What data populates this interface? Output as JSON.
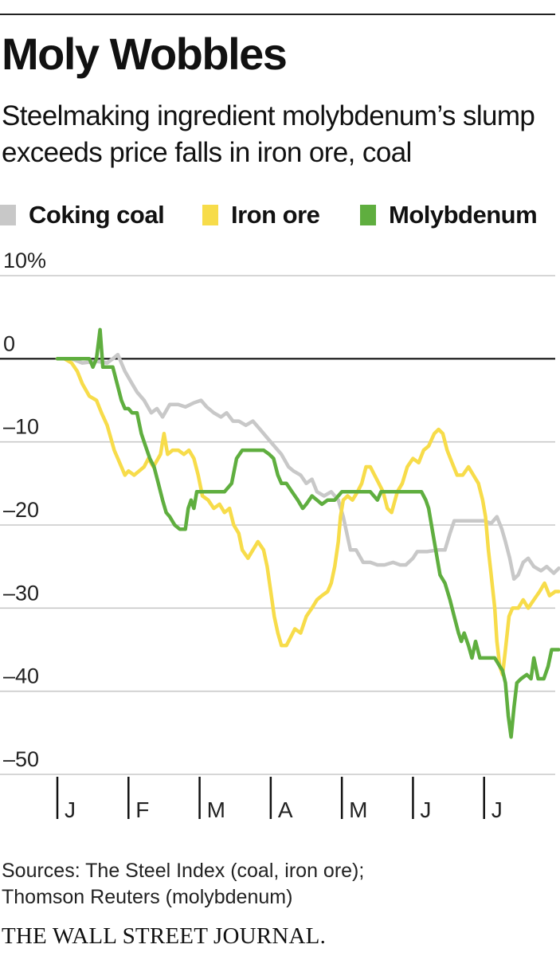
{
  "header": {
    "title": "Moly Wobbles",
    "subtitle": "Steelmaking ingredient molybdenum’s slump exceeds price falls in iron ore, coal"
  },
  "footer": {
    "source_lines": [
      "Sources: The Steel Index (coal, iron ore);",
      "Thomson Reuters (molybdenum)"
    ],
    "publisher": "THE WALL STREET JOURNAL."
  },
  "colors": {
    "coking_coal": "#c8c8c8",
    "iron_ore": "#f7dc4a",
    "molybdenum": "#5fae3f",
    "zero_line": "#111111",
    "grid": "#c8c8c8"
  },
  "chart_data": {
    "type": "line",
    "title": "Moly Wobbles",
    "subtitle": "Steelmaking ingredient molybdenum’s slump exceeds price falls in iron ore, coal",
    "xlabel": "",
    "ylabel": "",
    "y_tick_labels": [
      "10%",
      "0",
      "–10",
      "–20",
      "–30",
      "–40",
      "–50"
    ],
    "y_ticks": [
      10,
      0,
      -10,
      -20,
      -30,
      -40,
      -50
    ],
    "ylim": [
      -50,
      10
    ],
    "xlim": [
      0,
      7
    ],
    "x_tick_labels": [
      "J",
      "F",
      "M",
      "A",
      "M",
      "J",
      "J"
    ],
    "x_ticks": [
      0,
      1,
      2,
      3,
      4,
      5,
      6
    ],
    "legend_position": "top",
    "grid": true,
    "series": [
      {
        "name": "Coking coal",
        "color": "#c8c8c8",
        "points": [
          [
            0.0,
            0
          ],
          [
            0.2,
            0
          ],
          [
            0.35,
            -0.5
          ],
          [
            0.55,
            -0.3
          ],
          [
            0.7,
            -0.5
          ],
          [
            0.78,
            0
          ],
          [
            0.85,
            0.5
          ],
          [
            0.95,
            -1.5
          ],
          [
            1.05,
            -3
          ],
          [
            1.12,
            -4
          ],
          [
            1.22,
            -5
          ],
          [
            1.32,
            -6.5
          ],
          [
            1.4,
            -6
          ],
          [
            1.48,
            -7
          ],
          [
            1.58,
            -5.5
          ],
          [
            1.7,
            -5.5
          ],
          [
            1.8,
            -5.8
          ],
          [
            1.92,
            -5.3
          ],
          [
            2.02,
            -5
          ],
          [
            2.1,
            -5.8
          ],
          [
            2.2,
            -6.5
          ],
          [
            2.3,
            -7
          ],
          [
            2.38,
            -6.5
          ],
          [
            2.47,
            -7.5
          ],
          [
            2.55,
            -7.5
          ],
          [
            2.65,
            -8
          ],
          [
            2.75,
            -7.5
          ],
          [
            2.85,
            -8.5
          ],
          [
            2.95,
            -9.5
          ],
          [
            3.05,
            -10.5
          ],
          [
            3.15,
            -11.5
          ],
          [
            3.25,
            -13
          ],
          [
            3.32,
            -13.5
          ],
          [
            3.42,
            -14
          ],
          [
            3.5,
            -15
          ],
          [
            3.58,
            -14.5
          ],
          [
            3.65,
            -16
          ],
          [
            3.75,
            -16.5
          ],
          [
            3.85,
            -16
          ],
          [
            3.95,
            -17
          ],
          [
            4.02,
            -19
          ],
          [
            4.07,
            -21
          ],
          [
            4.12,
            -23
          ],
          [
            4.2,
            -23
          ],
          [
            4.3,
            -24.5
          ],
          [
            4.4,
            -24.5
          ],
          [
            4.5,
            -24.8
          ],
          [
            4.6,
            -24.8
          ],
          [
            4.72,
            -24.5
          ],
          [
            4.82,
            -24.8
          ],
          [
            4.9,
            -24.8
          ],
          [
            5.0,
            -24
          ],
          [
            5.06,
            -23.2
          ],
          [
            5.2,
            -23.2
          ],
          [
            5.35,
            -23
          ],
          [
            5.45,
            -23
          ],
          [
            5.52,
            -21
          ],
          [
            5.58,
            -19.5
          ],
          [
            5.7,
            -19.5
          ],
          [
            5.8,
            -19.5
          ],
          [
            5.9,
            -19.5
          ],
          [
            6.0,
            -19.5
          ],
          [
            6.1,
            -19.8
          ],
          [
            6.18,
            -19
          ],
          [
            6.25,
            -20.5
          ],
          [
            6.3,
            -22
          ],
          [
            6.36,
            -24
          ],
          [
            6.42,
            -26.5
          ],
          [
            6.48,
            -26
          ],
          [
            6.55,
            -24.5
          ],
          [
            6.62,
            -24
          ],
          [
            6.7,
            -25
          ],
          [
            6.8,
            -25.5
          ],
          [
            6.88,
            -25
          ],
          [
            6.98,
            -25.8
          ],
          [
            7.05,
            -25.2
          ]
        ]
      },
      {
        "name": "Iron ore",
        "color": "#f7dc4a",
        "points": [
          [
            0.0,
            0
          ],
          [
            0.1,
            0
          ],
          [
            0.2,
            -0.5
          ],
          [
            0.28,
            -1.5
          ],
          [
            0.35,
            -3
          ],
          [
            0.45,
            -4.5
          ],
          [
            0.55,
            -5
          ],
          [
            0.62,
            -6.5
          ],
          [
            0.7,
            -8
          ],
          [
            0.75,
            -9.5
          ],
          [
            0.8,
            -11
          ],
          [
            0.85,
            -12
          ],
          [
            0.9,
            -13
          ],
          [
            0.95,
            -14
          ],
          [
            1.0,
            -13.5
          ],
          [
            1.08,
            -14
          ],
          [
            1.15,
            -13.5
          ],
          [
            1.22,
            -13
          ],
          [
            1.28,
            -12
          ],
          [
            1.35,
            -13
          ],
          [
            1.45,
            -11.5
          ],
          [
            1.5,
            -9
          ],
          [
            1.55,
            -11.5
          ],
          [
            1.62,
            -11
          ],
          [
            1.7,
            -11
          ],
          [
            1.78,
            -11.5
          ],
          [
            1.85,
            -11
          ],
          [
            1.92,
            -12
          ],
          [
            1.98,
            -14
          ],
          [
            2.04,
            -16.5
          ],
          [
            2.12,
            -17
          ],
          [
            2.2,
            -18
          ],
          [
            2.28,
            -17.5
          ],
          [
            2.35,
            -18.5
          ],
          [
            2.42,
            -18
          ],
          [
            2.48,
            -20
          ],
          [
            2.55,
            -21
          ],
          [
            2.6,
            -23
          ],
          [
            2.68,
            -24
          ],
          [
            2.75,
            -23
          ],
          [
            2.82,
            -22
          ],
          [
            2.9,
            -23
          ],
          [
            2.95,
            -25
          ],
          [
            3.0,
            -28
          ],
          [
            3.05,
            -31
          ],
          [
            3.1,
            -33
          ],
          [
            3.15,
            -34.5
          ],
          [
            3.22,
            -34.5
          ],
          [
            3.28,
            -33.5
          ],
          [
            3.34,
            -32.5
          ],
          [
            3.42,
            -33
          ],
          [
            3.5,
            -31
          ],
          [
            3.58,
            -30
          ],
          [
            3.65,
            -29
          ],
          [
            3.72,
            -28.5
          ],
          [
            3.8,
            -28
          ],
          [
            3.85,
            -27
          ],
          [
            3.9,
            -25
          ],
          [
            3.95,
            -22
          ],
          [
            3.98,
            -19
          ],
          [
            4.02,
            -17
          ],
          [
            4.08,
            -16.5
          ],
          [
            4.15,
            -17
          ],
          [
            4.22,
            -16
          ],
          [
            4.28,
            -15
          ],
          [
            4.34,
            -13
          ],
          [
            4.4,
            -13
          ],
          [
            4.46,
            -14
          ],
          [
            4.52,
            -15
          ],
          [
            4.58,
            -16
          ],
          [
            4.64,
            -18
          ],
          [
            4.7,
            -18.5
          ],
          [
            4.78,
            -16
          ],
          [
            4.85,
            -15
          ],
          [
            4.92,
            -13
          ],
          [
            5.0,
            -12
          ],
          [
            5.08,
            -12.5
          ],
          [
            5.15,
            -11
          ],
          [
            5.22,
            -10.5
          ],
          [
            5.3,
            -9
          ],
          [
            5.36,
            -8.5
          ],
          [
            5.42,
            -9
          ],
          [
            5.48,
            -11
          ],
          [
            5.55,
            -12.5
          ],
          [
            5.62,
            -14
          ],
          [
            5.7,
            -14
          ],
          [
            5.78,
            -13
          ],
          [
            5.85,
            -14
          ],
          [
            5.92,
            -15
          ],
          [
            5.98,
            -17
          ],
          [
            6.02,
            -19
          ],
          [
            6.06,
            -23
          ],
          [
            6.1,
            -26
          ],
          [
            6.15,
            -30
          ],
          [
            6.18,
            -34
          ],
          [
            6.22,
            -37
          ],
          [
            6.26,
            -38
          ],
          [
            6.3,
            -35
          ],
          [
            6.35,
            -31
          ],
          [
            6.4,
            -30
          ],
          [
            6.48,
            -30
          ],
          [
            6.55,
            -29
          ],
          [
            6.62,
            -30
          ],
          [
            6.7,
            -29
          ],
          [
            6.78,
            -28
          ],
          [
            6.85,
            -27
          ],
          [
            6.92,
            -28.5
          ],
          [
            7.0,
            -28
          ],
          [
            7.05,
            -28
          ]
        ]
      },
      {
        "name": "Molybdenum",
        "color": "#5fae3f",
        "points": [
          [
            0.0,
            0
          ],
          [
            0.45,
            0
          ],
          [
            0.5,
            -1
          ],
          [
            0.55,
            0
          ],
          [
            0.6,
            3.5
          ],
          [
            0.64,
            -1
          ],
          [
            0.7,
            -1
          ],
          [
            0.78,
            -1
          ],
          [
            0.84,
            -3
          ],
          [
            0.9,
            -5
          ],
          [
            0.95,
            -6
          ],
          [
            1.0,
            -6
          ],
          [
            1.05,
            -6.5
          ],
          [
            1.12,
            -6.5
          ],
          [
            1.18,
            -9
          ],
          [
            1.22,
            -10
          ],
          [
            1.3,
            -12
          ],
          [
            1.36,
            -13
          ],
          [
            1.42,
            -15
          ],
          [
            1.48,
            -17
          ],
          [
            1.53,
            -18.5
          ],
          [
            1.58,
            -19
          ],
          [
            1.65,
            -20
          ],
          [
            1.72,
            -20.5
          ],
          [
            1.8,
            -20.5
          ],
          [
            1.84,
            -18
          ],
          [
            1.88,
            -17
          ],
          [
            1.92,
            -18
          ],
          [
            1.96,
            -16
          ],
          [
            2.05,
            -16
          ],
          [
            2.2,
            -16
          ],
          [
            2.35,
            -16
          ],
          [
            2.45,
            -15
          ],
          [
            2.52,
            -12
          ],
          [
            2.6,
            -11
          ],
          [
            2.7,
            -11
          ],
          [
            2.82,
            -11
          ],
          [
            2.9,
            -11
          ],
          [
            2.98,
            -11.5
          ],
          [
            3.04,
            -12
          ],
          [
            3.1,
            -14
          ],
          [
            3.15,
            -15
          ],
          [
            3.22,
            -15
          ],
          [
            3.3,
            -16
          ],
          [
            3.38,
            -17
          ],
          [
            3.45,
            -18
          ],
          [
            3.5,
            -17.5
          ],
          [
            3.58,
            -16.5
          ],
          [
            3.65,
            -17
          ],
          [
            3.72,
            -17.5
          ],
          [
            3.8,
            -17
          ],
          [
            3.9,
            -17
          ],
          [
            4.0,
            -16
          ],
          [
            4.2,
            -16
          ],
          [
            4.4,
            -16
          ],
          [
            4.5,
            -17
          ],
          [
            4.55,
            -16
          ],
          [
            4.7,
            -16
          ],
          [
            4.85,
            -16
          ],
          [
            5.0,
            -16
          ],
          [
            5.12,
            -16
          ],
          [
            5.18,
            -17
          ],
          [
            5.22,
            -18
          ],
          [
            5.28,
            -21
          ],
          [
            5.32,
            -23
          ],
          [
            5.38,
            -26
          ],
          [
            5.45,
            -27
          ],
          [
            5.52,
            -29
          ],
          [
            5.58,
            -31
          ],
          [
            5.64,
            -33
          ],
          [
            5.68,
            -34
          ],
          [
            5.72,
            -33
          ],
          [
            5.78,
            -34.5
          ],
          [
            5.83,
            -36
          ],
          [
            5.88,
            -34
          ],
          [
            5.94,
            -36
          ],
          [
            6.05,
            -36
          ],
          [
            6.15,
            -36
          ],
          [
            6.22,
            -37
          ],
          [
            6.26,
            -37.5
          ],
          [
            6.3,
            -39
          ],
          [
            6.34,
            -43
          ],
          [
            6.38,
            -45.5
          ],
          [
            6.42,
            -42
          ],
          [
            6.46,
            -39
          ],
          [
            6.52,
            -38.5
          ],
          [
            6.6,
            -38
          ],
          [
            6.66,
            -38.5
          ],
          [
            6.7,
            -36
          ],
          [
            6.76,
            -38.5
          ],
          [
            6.84,
            -38.5
          ],
          [
            6.9,
            -37
          ],
          [
            6.95,
            -35
          ],
          [
            7.0,
            -35
          ],
          [
            7.05,
            -35
          ]
        ]
      }
    ]
  }
}
